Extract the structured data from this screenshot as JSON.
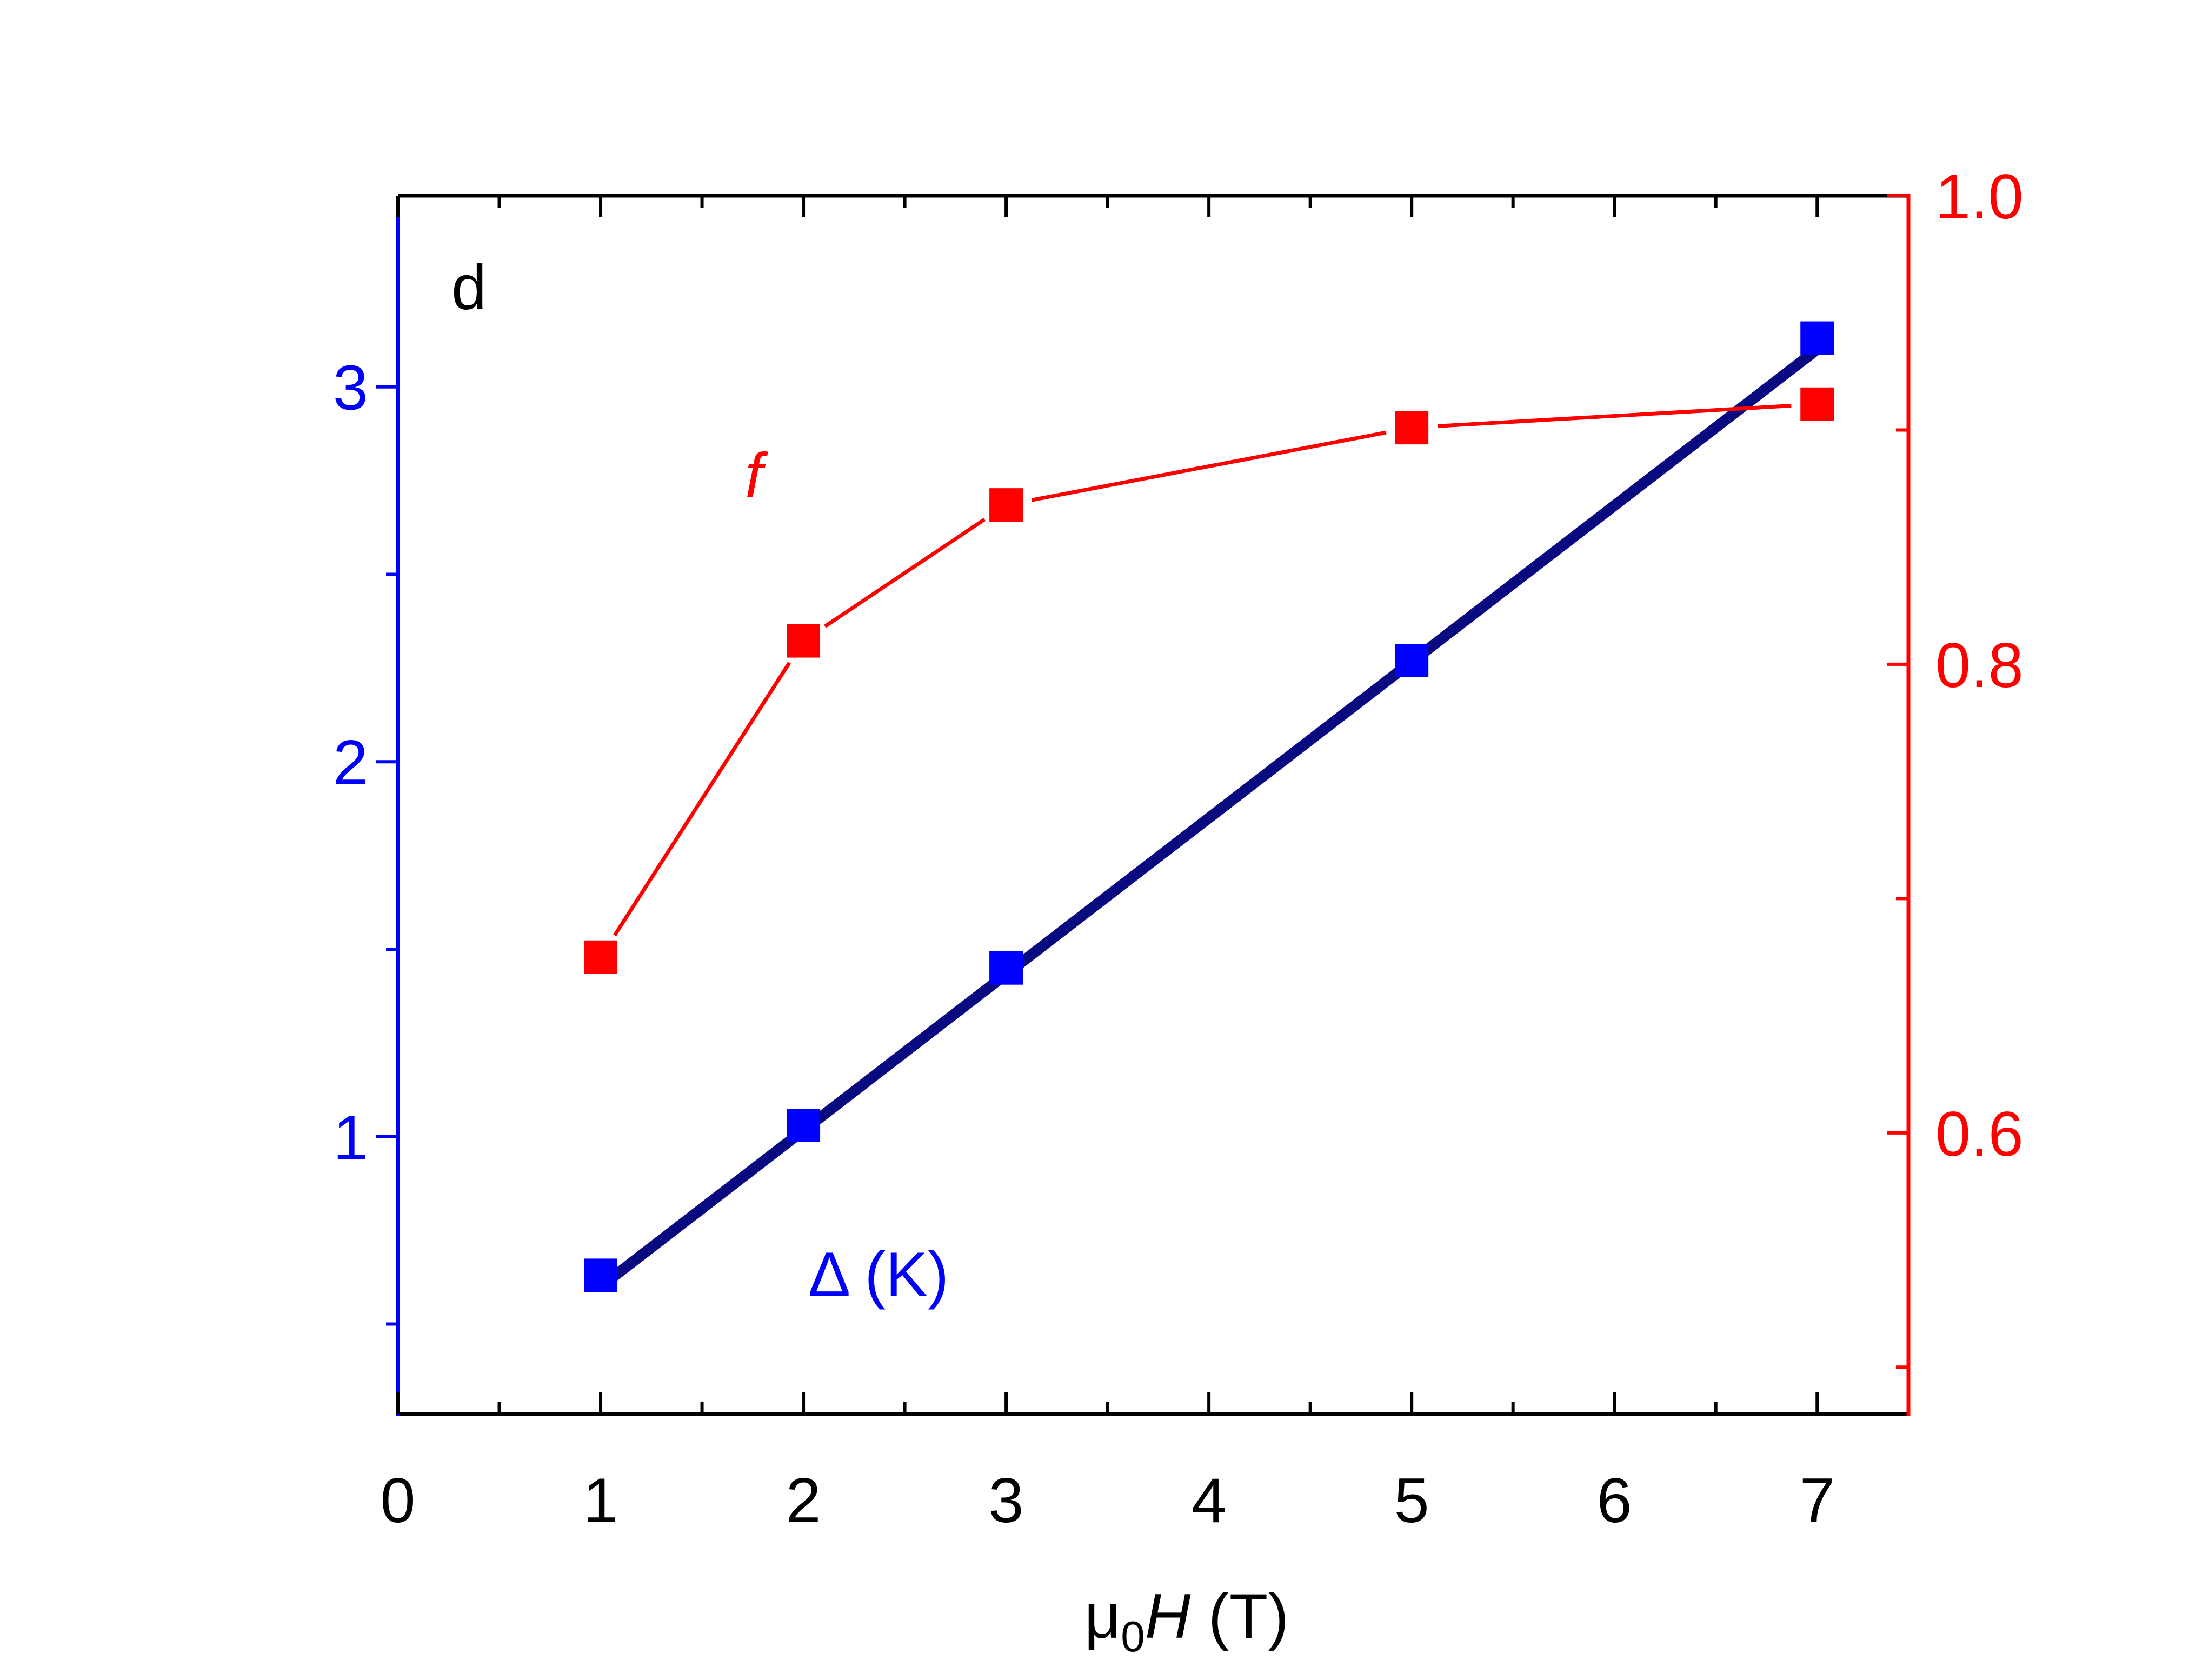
{
  "chart_data": {
    "type": "line",
    "panel_label": "d",
    "xlabel": {
      "prefix": "μ",
      "sub": "0",
      "italic": "H",
      "suffix": " (T)"
    },
    "xlim": [
      0,
      7.45
    ],
    "xticks": [
      0,
      1,
      2,
      3,
      4,
      5,
      6,
      7
    ],
    "y_left": {
      "lim": [
        0.26,
        3.51
      ],
      "ticks": [
        1,
        2,
        3
      ],
      "color": "#0000ff"
    },
    "y_right": {
      "lim": [
        0.48,
        1.0
      ],
      "ticks": [
        "0.6",
        "0.8",
        "1.0"
      ],
      "color": "#ff0000"
    },
    "series": [
      {
        "name": "f",
        "axis": "right",
        "color": "#ff0000",
        "marker": "square",
        "x": [
          1,
          2,
          3,
          5,
          7
        ],
        "y": [
          0.675,
          0.81,
          0.868,
          0.901,
          0.911
        ]
      },
      {
        "name": "Δ (K)",
        "axis": "left",
        "color": "#0000ff",
        "marker": "square",
        "x": [
          1,
          2,
          3,
          5,
          7
        ],
        "y": [
          0.63,
          1.03,
          1.45,
          2.27,
          3.13
        ]
      }
    ],
    "fit_line": {
      "axis": "left",
      "color": "#0a0a80",
      "x": [
        1,
        7
      ],
      "y": [
        0.6,
        3.1
      ]
    }
  }
}
